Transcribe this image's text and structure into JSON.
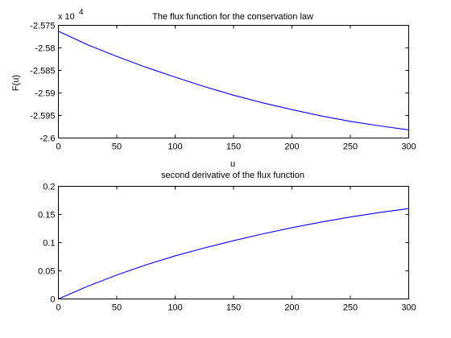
{
  "chart_data": [
    {
      "type": "line",
      "title": "The flux function for the conservation law",
      "xlabel": "u",
      "ylabel": "F(u)",
      "y_multiplier": "x 10",
      "y_exponent": "4",
      "xlim": [
        0,
        300
      ],
      "ylim": [
        -2.6,
        -2.575
      ],
      "xticks": [
        0,
        50,
        100,
        150,
        200,
        250,
        300
      ],
      "xtick_labels": [
        "0",
        "50",
        "100",
        "150",
        "200",
        "250",
        "300"
      ],
      "yticks": [
        -2.6,
        -2.595,
        -2.59,
        -2.585,
        -2.58,
        -2.575
      ],
      "ytick_labels": [
        "-2.6",
        "-2.595",
        "-2.59",
        "-2.585",
        "-2.58",
        "-2.575"
      ],
      "grid": false,
      "series": [
        {
          "color": "#0000ff",
          "x": [
            0,
            25,
            50,
            75,
            100,
            125,
            150,
            175,
            200,
            225,
            250,
            275,
            300
          ],
          "y": [
            -2.5763,
            -2.5793,
            -2.5819,
            -2.5843,
            -2.5865,
            -2.5886,
            -2.5905,
            -2.5922,
            -2.5937,
            -2.5951,
            -2.5963,
            -2.5973,
            -2.5982
          ]
        }
      ]
    },
    {
      "type": "line",
      "title": "second derivative of the flux function",
      "xlabel": "",
      "ylabel": "",
      "xlim": [
        0,
        300
      ],
      "ylim": [
        0,
        0.2
      ],
      "xticks": [
        0,
        50,
        100,
        150,
        200,
        250,
        300
      ],
      "xtick_labels": [
        "0",
        "50",
        "100",
        "150",
        "200",
        "250",
        "300"
      ],
      "yticks": [
        0,
        0.05,
        0.1,
        0.15,
        0.2
      ],
      "ytick_labels": [
        "0",
        "0.05",
        "0.1",
        "0.15",
        "0.2"
      ],
      "grid": false,
      "series": [
        {
          "color": "#0000ff",
          "x": [
            0,
            25,
            50,
            75,
            100,
            125,
            150,
            175,
            200,
            225,
            250,
            275,
            300
          ],
          "y": [
            0,
            0.0225,
            0.0425,
            0.0605,
            0.0765,
            0.0905,
            0.1035,
            0.1155,
            0.1265,
            0.1365,
            0.1455,
            0.1535,
            0.1605
          ]
        }
      ]
    }
  ]
}
